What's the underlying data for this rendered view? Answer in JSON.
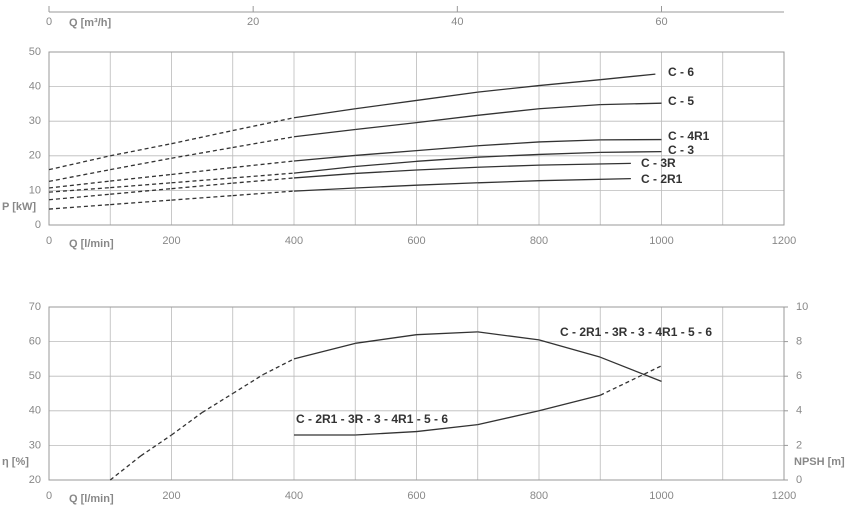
{
  "chart_data": [
    {
      "type": "line",
      "x_label": "Q [l/min]",
      "x2_label": "Q [m³/h]",
      "y_label": "P [kW]",
      "xlim": [
        0,
        1200
      ],
      "xticks": [
        0,
        200,
        400,
        600,
        800,
        1000,
        1200
      ],
      "xgrid": [
        0,
        100,
        200,
        300,
        400,
        500,
        600,
        700,
        800,
        900,
        1000,
        1100,
        1200
      ],
      "x2lim": [
        0,
        72
      ],
      "x2ticks": [
        0,
        20,
        40,
        60
      ],
      "ylim": [
        0,
        50
      ],
      "yticks": [
        0,
        10,
        20,
        30,
        40,
        50
      ],
      "series": [
        {
          "name": "C - 6",
          "color": "#333333",
          "dashed_range": [
            0,
            400
          ],
          "x": [
            0,
            100,
            200,
            300,
            400,
            500,
            600,
            700,
            800,
            900,
            990
          ],
          "values": [
            16,
            20,
            23.5,
            27.3,
            31,
            33.6,
            36,
            38.4,
            40.3,
            42,
            43.6
          ]
        },
        {
          "name": "C - 5",
          "color": "#333333",
          "dashed_range": [
            0,
            400
          ],
          "x": [
            0,
            100,
            200,
            300,
            400,
            500,
            600,
            700,
            800,
            900,
            1000
          ],
          "values": [
            12.6,
            16,
            19.3,
            22.4,
            25.5,
            27.6,
            29.6,
            31.7,
            33.6,
            34.8,
            35.2
          ]
        },
        {
          "name": "C - 4R1",
          "color": "#333333",
          "dashed_range": [
            0,
            400
          ],
          "x": [
            0,
            100,
            200,
            300,
            400,
            500,
            600,
            700,
            800,
            900,
            1000
          ],
          "values": [
            10.7,
            12.7,
            14.6,
            16.6,
            18.5,
            20.1,
            21.5,
            22.9,
            24,
            24.6,
            24.7
          ]
        },
        {
          "name": "C - 3",
          "color": "#333333",
          "dashed_range": [
            0,
            400
          ],
          "x": [
            0,
            100,
            200,
            300,
            400,
            500,
            600,
            700,
            800,
            900,
            1000
          ],
          "values": [
            9.5,
            10.8,
            12.2,
            13.6,
            15,
            16.9,
            18.4,
            19.6,
            20.4,
            21,
            21.2
          ]
        },
        {
          "name": "C - 3R",
          "color": "#333333",
          "dashed_range": [
            0,
            400
          ],
          "x": [
            0,
            100,
            200,
            300,
            400,
            500,
            600,
            700,
            800,
            950
          ],
          "values": [
            7.3,
            8.9,
            10.5,
            12.1,
            13.6,
            14.9,
            15.9,
            16.7,
            17.3,
            17.8
          ]
        },
        {
          "name": "C - 2R1",
          "color": "#333333",
          "dashed_range": [
            0,
            400
          ],
          "x": [
            0,
            100,
            200,
            300,
            400,
            500,
            600,
            700,
            800,
            950
          ],
          "values": [
            4.6,
            5.9,
            7.2,
            8.5,
            9.8,
            10.7,
            11.5,
            12.2,
            12.8,
            13.4
          ]
        }
      ]
    },
    {
      "type": "line",
      "x_label": "Q [l/min]",
      "y_label": "η [%]",
      "y2_label": "NPSH [m]",
      "xlim": [
        0,
        1200
      ],
      "xticks": [
        0,
        200,
        400,
        600,
        800,
        1000,
        1200
      ],
      "xgrid": [
        0,
        100,
        200,
        300,
        400,
        500,
        600,
        700,
        800,
        900,
        1000,
        1100,
        1200
      ],
      "ylim": [
        20,
        70
      ],
      "yticks": [
        20,
        30,
        40,
        50,
        60,
        70
      ],
      "y2lim": [
        0,
        10
      ],
      "y2ticks": [
        0,
        2,
        4,
        6,
        8,
        10
      ],
      "series": [
        {
          "name": "C - 2R1 - 3R - 3 - 4R1 - 5 - 6",
          "color": "#333333",
          "dashed_range": [
            0,
            400
          ],
          "x": [
            100,
            150,
            200,
            250,
            300,
            350,
            400,
            500,
            600,
            700,
            800,
            900,
            1000
          ],
          "values": [
            20,
            27,
            33,
            39.5,
            45,
            50.5,
            55,
            59.5,
            62,
            62.8,
            60.5,
            55.5,
            48.5
          ]
        },
        {
          "name": "C - 2R1 - 3R - 3 - 4R1 - 5 - 6",
          "color": "#333333",
          "axis": "y2",
          "dashed_range": [
            900,
            1000
          ],
          "x": [
            400,
            500,
            600,
            700,
            800,
            900,
            1000
          ],
          "values": [
            2.6,
            2.6,
            2.8,
            3.2,
            4.0,
            4.9,
            6.6
          ]
        }
      ]
    }
  ]
}
